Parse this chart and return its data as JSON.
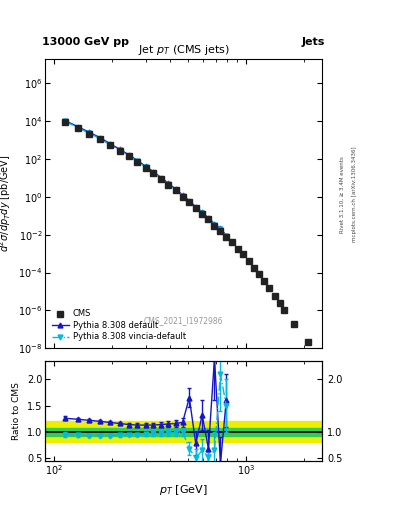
{
  "title_main": "13000 GeV pp",
  "title_right": "Jets",
  "plot_title": "Jet $p_T$ (CMS jets)",
  "xlabel": "$p_{T}$ [GeV]",
  "ylabel_main": "$d^{2}\\sigma/dp_{T}dy$ [pb/GeV]",
  "ylabel_ratio": "Ratio to CMS",
  "watermark": "CMS_2021_I1972986",
  "right_label_top": "Rivet 3.1.10, ≥ 3.4M events",
  "right_label_bot": "mcplots.cern.ch [arXiv:1306.3436]",
  "cms_pt": [
    114,
    133,
    153,
    174,
    196,
    220,
    245,
    272,
    300,
    330,
    362,
    395,
    430,
    468,
    507,
    548,
    592,
    638,
    686,
    737,
    790,
    846,
    905,
    967,
    1032,
    1101,
    1172,
    1248,
    1327,
    1410,
    1497,
    1588,
    1784,
    2116
  ],
  "cms_val": [
    9500,
    4200,
    2100,
    1100,
    530,
    270,
    140,
    69,
    35,
    17.5,
    8.8,
    4.4,
    2.2,
    1.05,
    0.52,
    0.25,
    0.13,
    0.065,
    0.03,
    0.016,
    0.008,
    0.004,
    0.0018,
    0.0009,
    0.0004,
    0.00018,
    8e-05,
    3.5e-05,
    1.5e-05,
    6e-06,
    2.5e-06,
    1e-06,
    2e-07,
    2e-08
  ],
  "py8_pt": [
    114,
    133,
    153,
    174,
    196,
    220,
    245,
    272,
    300,
    330,
    362,
    395,
    430,
    468,
    507,
    548,
    592,
    638,
    686,
    737,
    790
  ],
  "py8_val": [
    11000,
    5200,
    2600,
    1350,
    650,
    330,
    170,
    84,
    42,
    21,
    10.5,
    5.2,
    2.6,
    1.27,
    0.62,
    0.3,
    0.155,
    0.075,
    0.038,
    0.022,
    0.009
  ],
  "vin_pt": [
    114,
    133,
    153,
    174,
    196,
    220,
    245,
    272,
    300,
    330,
    362,
    395,
    430,
    468,
    507,
    548,
    592,
    638,
    686,
    737,
    790
  ],
  "vin_val": [
    10200,
    4600,
    2300,
    1200,
    575,
    295,
    152,
    76,
    37,
    18.5,
    9.3,
    4.7,
    2.35,
    1.12,
    0.55,
    0.27,
    0.14,
    0.068,
    0.034,
    0.019,
    0.0085
  ],
  "ratio_py8_pt": [
    114,
    133,
    153,
    174,
    196,
    220,
    245,
    272,
    300,
    330,
    362,
    395,
    430,
    468,
    507,
    548,
    592,
    638,
    686,
    737,
    790
  ],
  "ratio_py8_val": [
    1.26,
    1.24,
    1.22,
    1.2,
    1.18,
    1.16,
    1.14,
    1.13,
    1.13,
    1.13,
    1.14,
    1.15,
    1.16,
    1.18,
    1.65,
    0.78,
    1.32,
    0.68,
    2.4,
    0.4,
    1.6
  ],
  "ratio_py8_err": [
    0.04,
    0.03,
    0.03,
    0.03,
    0.03,
    0.03,
    0.03,
    0.03,
    0.04,
    0.04,
    0.04,
    0.05,
    0.06,
    0.08,
    0.18,
    0.22,
    0.28,
    0.35,
    0.8,
    0.5,
    0.5
  ],
  "ratio_vin_pt": [
    114,
    133,
    153,
    174,
    196,
    220,
    245,
    272,
    300,
    330,
    362,
    395,
    430,
    468,
    507,
    548,
    592,
    638,
    686,
    737,
    790
  ],
  "ratio_vin_val": [
    0.95,
    0.94,
    0.93,
    0.93,
    0.93,
    0.94,
    0.95,
    0.95,
    0.96,
    0.97,
    0.97,
    0.98,
    0.99,
    1.0,
    0.68,
    0.5,
    0.65,
    0.52,
    0.65,
    2.1,
    1.5
  ],
  "ratio_vin_err": [
    0.04,
    0.03,
    0.03,
    0.03,
    0.03,
    0.03,
    0.03,
    0.03,
    0.04,
    0.04,
    0.04,
    0.05,
    0.06,
    0.08,
    0.12,
    0.18,
    0.22,
    0.28,
    0.35,
    0.7,
    0.5
  ],
  "band_green_lo": 0.92,
  "band_green_hi": 1.08,
  "band_yellow_lo": 0.8,
  "band_yellow_hi": 1.2,
  "cms_color": "#222222",
  "py8_color": "#1515cc",
  "vin_color": "#00bbdd",
  "green_band": "#33cc55",
  "yellow_band": "#eeee00",
  "xlim": [
    90,
    2500
  ],
  "ylim_main": [
    1e-08,
    20000000.0
  ],
  "ylim_ratio": [
    0.45,
    2.35
  ],
  "yticks_ratio": [
    0.5,
    1.0,
    1.5,
    2.0
  ],
  "yticks_ratio_right": [
    0.5,
    1.0,
    2.0
  ],
  "fig_width": 3.93,
  "fig_height": 5.12,
  "dpi": 100
}
